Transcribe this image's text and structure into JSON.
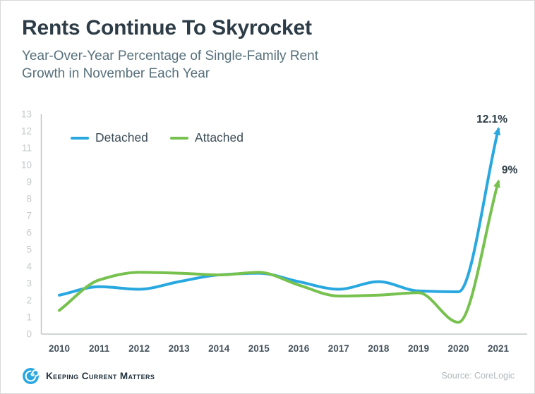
{
  "header": {
    "title": "Rents Continue To Skyrocket",
    "subtitle": "Year-Over-Year Percentage of Single-Family Rent Growth in November Each Year"
  },
  "chart_data": {
    "type": "line",
    "title": "Rents Continue To Skyrocket",
    "subtitle": "Year-Over-Year Percentage of Single-Family Rent Growth in November Each Year",
    "categories": [
      "2010",
      "2011",
      "2012",
      "2013",
      "2014",
      "2015",
      "2016",
      "2017",
      "2018",
      "2019",
      "2020",
      "2021"
    ],
    "series": [
      {
        "name": "Detached",
        "color": "#29a8e0",
        "values": [
          2.3,
          2.8,
          2.65,
          3.1,
          3.5,
          3.6,
          3.1,
          2.65,
          3.1,
          2.55,
          2.5,
          12.1
        ],
        "end_label": "12.1%"
      },
      {
        "name": "Attached",
        "color": "#77c14e",
        "values": [
          1.4,
          3.2,
          3.65,
          3.6,
          3.5,
          3.65,
          2.9,
          2.25,
          2.3,
          2.45,
          0.7,
          9.0
        ],
        "end_label": "9%"
      }
    ],
    "xlabel": "",
    "ylabel": "",
    "ylim": [
      0,
      13
    ],
    "y_ticks": [
      0,
      1,
      2,
      3,
      4,
      5,
      6,
      7,
      8,
      9,
      10,
      11,
      12,
      13
    ],
    "grid": false,
    "legend_position": "top-left",
    "axis_color": "#c2c6c8",
    "y_tick_color": "#c6c9cb",
    "x_tick_color": "#45525c"
  },
  "footer": {
    "brand": "Keeping Current Matters",
    "source": "Source: CoreLogic"
  }
}
